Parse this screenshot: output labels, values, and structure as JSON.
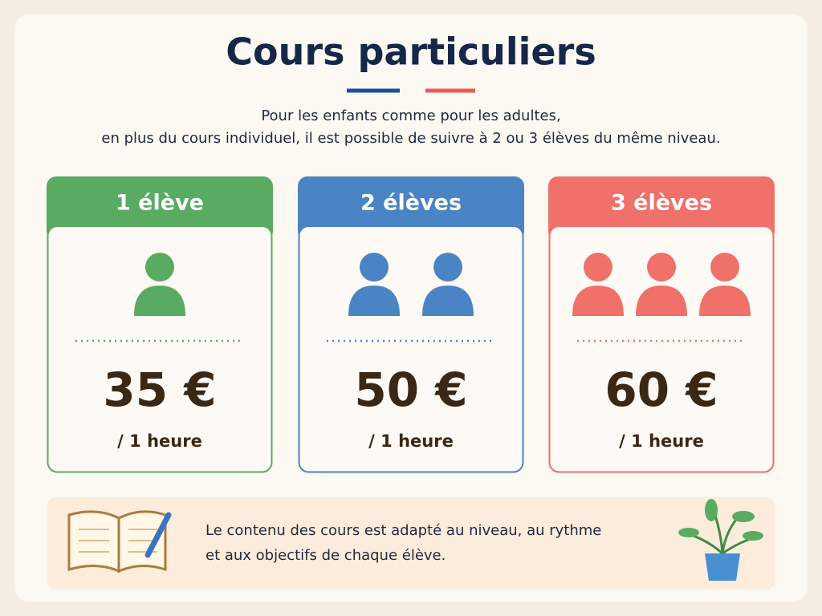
{
  "header": {
    "title": "Cours particuliers",
    "subtitle": [
      "Pour les enfants comme pour les adultes,",
      "en plus du cours individuel, il est possible de suivre à 2 ou 3 élèves du même niveau."
    ]
  },
  "cards": [
    {
      "title": "1 élève",
      "price": "35 €",
      "unit": "/ 1 heure"
    },
    {
      "title": "2 élèves",
      "price": "50 €",
      "unit": "/ 1 heure"
    },
    {
      "title": "3 élèves",
      "price": "60 €",
      "unit": "/ 1 heure"
    }
  ],
  "footer": {
    "note": [
      "Le contenu des cours est adapté au niveau, au rythme",
      "et aux objectifs de chaque élève."
    ]
  }
}
